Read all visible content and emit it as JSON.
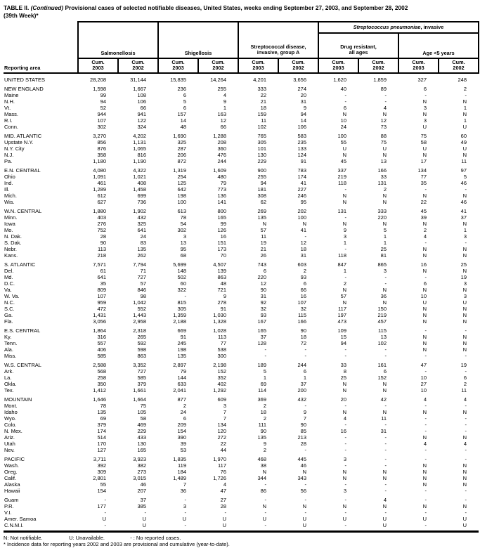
{
  "title": {
    "bold": "TABLE II.",
    "continued": "(Continued)",
    "rest": "Provisional cases of selected notifiable diseases, United States, weeks ending September 27, 2003, and September 28, 2002",
    "line2": "(39th Week)*"
  },
  "header": {
    "reporting_area": "Reporting area",
    "groups": {
      "salmonellosis": "Salmonellosis",
      "shigellosis": "Shigellosis",
      "strep_a_line1": "Streptococcal disease,",
      "strep_a_line2": "invasive, group A",
      "spn_italic": "Streptococcus pneumoniae",
      "spn_rest": ", invasive",
      "drug_line1": "Drug resistant,",
      "drug_line2": "all ages",
      "age": "Age <5 years"
    },
    "subheaders": [
      {
        "label": "Cum.",
        "year": "2003"
      },
      {
        "label": "Cum.",
        "year": "2002"
      },
      {
        "label": "Cum.",
        "year": "2003"
      },
      {
        "label": "Cum.",
        "year": "2002"
      },
      {
        "label": "Cum.",
        "year": "2003"
      },
      {
        "label": "Cum.",
        "year": "2002"
      },
      {
        "label": "Cum.",
        "year": "2003"
      },
      {
        "label": "Cum.",
        "year": "2002"
      },
      {
        "label": "Cum.",
        "year": "2003"
      },
      {
        "label": "Cum.",
        "year": "2002"
      }
    ]
  },
  "rows": [
    {
      "area": "UNITED STATES",
      "type": "region",
      "gap": true,
      "values": [
        "28,208",
        "31,144",
        "15,835",
        "14,264",
        "4,201",
        "3,656",
        "1,620",
        "1,859",
        "327",
        "248"
      ]
    },
    {
      "area": "NEW ENGLAND",
      "type": "region",
      "gap": true,
      "values": [
        "1,598",
        "1,667",
        "236",
        "255",
        "333",
        "274",
        "40",
        "89",
        "6",
        "2"
      ]
    },
    {
      "area": "Maine",
      "type": "state",
      "gap": false,
      "values": [
        "99",
        "108",
        "6",
        "4",
        "22",
        "20",
        "-",
        "-",
        "-",
        "-"
      ]
    },
    {
      "area": "N.H.",
      "type": "state",
      "gap": false,
      "values": [
        "94",
        "106",
        "5",
        "9",
        "21",
        "31",
        "-",
        "-",
        "N",
        "N"
      ]
    },
    {
      "area": "Vt.",
      "type": "state",
      "gap": false,
      "values": [
        "52",
        "66",
        "6",
        "1",
        "18",
        "9",
        "6",
        "4",
        "3",
        "1"
      ]
    },
    {
      "area": "Mass.",
      "type": "state",
      "gap": false,
      "values": [
        "944",
        "941",
        "157",
        "163",
        "159",
        "94",
        "N",
        "N",
        "N",
        "N"
      ]
    },
    {
      "area": "R.I.",
      "type": "state",
      "gap": false,
      "values": [
        "107",
        "122",
        "14",
        "12",
        "11",
        "14",
        "10",
        "12",
        "3",
        "1"
      ]
    },
    {
      "area": "Conn.",
      "type": "state",
      "gap": false,
      "values": [
        "302",
        "324",
        "48",
        "66",
        "102",
        "106",
        "24",
        "73",
        "U",
        "U"
      ]
    },
    {
      "area": "MID. ATLANTIC",
      "type": "region",
      "gap": true,
      "values": [
        "3,270",
        "4,202",
        "1,690",
        "1,288",
        "765",
        "583",
        "100",
        "88",
        "75",
        "60"
      ]
    },
    {
      "area": "Upstate N.Y.",
      "type": "state",
      "gap": false,
      "values": [
        "856",
        "1,131",
        "325",
        "208",
        "305",
        "235",
        "55",
        "75",
        "58",
        "49"
      ]
    },
    {
      "area": "N.Y. City",
      "type": "state",
      "gap": false,
      "values": [
        "876",
        "1,065",
        "287",
        "360",
        "101",
        "133",
        "U",
        "U",
        "U",
        "U"
      ]
    },
    {
      "area": "N.J.",
      "type": "state",
      "gap": false,
      "values": [
        "358",
        "816",
        "206",
        "476",
        "130",
        "124",
        "N",
        "N",
        "N",
        "N"
      ]
    },
    {
      "area": "Pa.",
      "type": "state",
      "gap": false,
      "values": [
        "1,180",
        "1,190",
        "872",
        "244",
        "229",
        "91",
        "45",
        "13",
        "17",
        "11"
      ]
    },
    {
      "area": "E.N. CENTRAL",
      "type": "region",
      "gap": true,
      "values": [
        "4,080",
        "4,322",
        "1,319",
        "1,609",
        "900",
        "783",
        "337",
        "166",
        "134",
        "97"
      ]
    },
    {
      "area": "Ohio",
      "type": "state",
      "gap": false,
      "values": [
        "1,091",
        "1,021",
        "254",
        "480",
        "255",
        "174",
        "219",
        "33",
        "77",
        "5"
      ]
    },
    {
      "area": "Ind.",
      "type": "state",
      "gap": false,
      "values": [
        "461",
        "408",
        "125",
        "79",
        "94",
        "41",
        "118",
        "131",
        "35",
        "46"
      ]
    },
    {
      "area": "Ill.",
      "type": "state",
      "gap": false,
      "values": [
        "1,289",
        "1,458",
        "642",
        "773",
        "181",
        "227",
        "-",
        "2",
        "-",
        "-"
      ]
    },
    {
      "area": "Mich.",
      "type": "state",
      "gap": false,
      "values": [
        "612",
        "699",
        "198",
        "136",
        "308",
        "246",
        "N",
        "N",
        "N",
        "N"
      ]
    },
    {
      "area": "Wis.",
      "type": "state",
      "gap": false,
      "values": [
        "627",
        "736",
        "100",
        "141",
        "62",
        "95",
        "N",
        "N",
        "22",
        "46"
      ]
    },
    {
      "area": "W.N. CENTRAL",
      "type": "region",
      "gap": true,
      "values": [
        "1,880",
        "1,902",
        "613",
        "800",
        "269",
        "202",
        "131",
        "333",
        "45",
        "41"
      ]
    },
    {
      "area": "Minn.",
      "type": "state",
      "gap": false,
      "values": [
        "403",
        "432",
        "78",
        "165",
        "135",
        "100",
        "-",
        "220",
        "39",
        "37"
      ]
    },
    {
      "area": "Iowa",
      "type": "state",
      "gap": false,
      "values": [
        "276",
        "325",
        "54",
        "99",
        "N",
        "N",
        "N",
        "N",
        "N",
        "N"
      ]
    },
    {
      "area": "Mo.",
      "type": "state",
      "gap": false,
      "values": [
        "752",
        "641",
        "302",
        "126",
        "57",
        "41",
        "9",
        "5",
        "2",
        "1"
      ]
    },
    {
      "area": "N. Dak.",
      "type": "state",
      "gap": false,
      "values": [
        "28",
        "24",
        "3",
        "16",
        "11",
        "-",
        "3",
        "1",
        "4",
        "3"
      ]
    },
    {
      "area": "S. Dak.",
      "type": "state",
      "gap": false,
      "values": [
        "90",
        "83",
        "13",
        "151",
        "19",
        "12",
        "1",
        "1",
        "-",
        "-"
      ]
    },
    {
      "area": "Nebr.",
      "type": "state",
      "gap": false,
      "values": [
        "113",
        "135",
        "95",
        "173",
        "21",
        "18",
        "-",
        "25",
        "N",
        "N"
      ]
    },
    {
      "area": "Kans.",
      "type": "state",
      "gap": false,
      "values": [
        "218",
        "262",
        "68",
        "70",
        "26",
        "31",
        "118",
        "81",
        "N",
        "N"
      ]
    },
    {
      "area": "S. ATLANTIC",
      "type": "region",
      "gap": true,
      "values": [
        "7,571",
        "7,794",
        "5,699",
        "4,507",
        "743",
        "603",
        "847",
        "865",
        "16",
        "25"
      ]
    },
    {
      "area": "Del.",
      "type": "state",
      "gap": false,
      "values": [
        "61",
        "71",
        "148",
        "139",
        "6",
        "2",
        "1",
        "3",
        "N",
        "N"
      ]
    },
    {
      "area": "Md.",
      "type": "state",
      "gap": false,
      "values": [
        "641",
        "727",
        "502",
        "863",
        "220",
        "93",
        "-",
        "-",
        "-",
        "19"
      ]
    },
    {
      "area": "D.C.",
      "type": "state",
      "gap": false,
      "values": [
        "35",
        "57",
        "60",
        "48",
        "12",
        "6",
        "2",
        "-",
        "6",
        "3"
      ]
    },
    {
      "area": "Va.",
      "type": "state",
      "gap": false,
      "values": [
        "809",
        "846",
        "322",
        "721",
        "90",
        "66",
        "N",
        "N",
        "N",
        "N"
      ]
    },
    {
      "area": "W. Va.",
      "type": "state",
      "gap": false,
      "values": [
        "107",
        "98",
        "-",
        "9",
        "31",
        "16",
        "57",
        "36",
        "10",
        "3"
      ]
    },
    {
      "area": "N.C.",
      "type": "state",
      "gap": false,
      "values": [
        "959",
        "1,042",
        "815",
        "278",
        "92",
        "107",
        "N",
        "N",
        "U",
        "U"
      ]
    },
    {
      "area": "S.C.",
      "type": "state",
      "gap": false,
      "values": [
        "472",
        "552",
        "305",
        "91",
        "32",
        "32",
        "117",
        "150",
        "N",
        "N"
      ]
    },
    {
      "area": "Ga.",
      "type": "state",
      "gap": false,
      "values": [
        "1,431",
        "1,443",
        "1,359",
        "1,030",
        "93",
        "115",
        "197",
        "219",
        "N",
        "N"
      ]
    },
    {
      "area": "Fla.",
      "type": "state",
      "gap": false,
      "values": [
        "3,056",
        "2,958",
        "2,188",
        "1,328",
        "167",
        "166",
        "473",
        "457",
        "N",
        "N"
      ]
    },
    {
      "area": "E.S. CENTRAL",
      "type": "region",
      "gap": true,
      "values": [
        "1,864",
        "2,318",
        "669",
        "1,028",
        "165",
        "90",
        "109",
        "115",
        "-",
        "-"
      ]
    },
    {
      "area": "Ky.",
      "type": "state",
      "gap": false,
      "values": [
        "316",
        "265",
        "91",
        "113",
        "37",
        "18",
        "15",
        "13",
        "N",
        "N"
      ]
    },
    {
      "area": "Tenn.",
      "type": "state",
      "gap": false,
      "values": [
        "557",
        "592",
        "245",
        "77",
        "128",
        "72",
        "94",
        "102",
        "N",
        "N"
      ]
    },
    {
      "area": "Ala.",
      "type": "state",
      "gap": false,
      "values": [
        "406",
        "598",
        "198",
        "538",
        "-",
        "-",
        "-",
        "-",
        "N",
        "N"
      ]
    },
    {
      "area": "Miss.",
      "type": "state",
      "gap": false,
      "values": [
        "585",
        "863",
        "135",
        "300",
        "-",
        "-",
        "-",
        "-",
        "-",
        "-"
      ]
    },
    {
      "area": "W.S. CENTRAL",
      "type": "region",
      "gap": true,
      "values": [
        "2,588",
        "3,352",
        "2,897",
        "2,198",
        "189",
        "244",
        "33",
        "161",
        "47",
        "19"
      ]
    },
    {
      "area": "Ark.",
      "type": "state",
      "gap": false,
      "values": [
        "568",
        "727",
        "79",
        "152",
        "5",
        "6",
        "8",
        "6",
        "-",
        "-"
      ]
    },
    {
      "area": "La.",
      "type": "state",
      "gap": false,
      "values": [
        "258",
        "585",
        "144",
        "352",
        "1",
        "1",
        "25",
        "152",
        "10",
        "6"
      ]
    },
    {
      "area": "Okla.",
      "type": "state",
      "gap": false,
      "values": [
        "350",
        "379",
        "633",
        "402",
        "69",
        "37",
        "N",
        "N",
        "27",
        "2"
      ]
    },
    {
      "area": "Tex.",
      "type": "state",
      "gap": false,
      "values": [
        "1,412",
        "1,661",
        "2,041",
        "1,292",
        "114",
        "200",
        "N",
        "N",
        "10",
        "11"
      ]
    },
    {
      "area": "MOUNTAIN",
      "type": "region",
      "gap": true,
      "values": [
        "1,646",
        "1,664",
        "877",
        "609",
        "369",
        "432",
        "20",
        "42",
        "4",
        "4"
      ]
    },
    {
      "area": "Mont.",
      "type": "state",
      "gap": false,
      "values": [
        "78",
        "75",
        "2",
        "3",
        "2",
        "-",
        "-",
        "-",
        "-",
        "-"
      ]
    },
    {
      "area": "Idaho",
      "type": "state",
      "gap": false,
      "values": [
        "135",
        "105",
        "24",
        "7",
        "18",
        "9",
        "N",
        "N",
        "N",
        "N"
      ]
    },
    {
      "area": "Wyo.",
      "type": "state",
      "gap": false,
      "values": [
        "69",
        "58",
        "6",
        "7",
        "2",
        "7",
        "4",
        "11",
        "-",
        "-"
      ]
    },
    {
      "area": "Colo.",
      "type": "state",
      "gap": false,
      "values": [
        "379",
        "469",
        "209",
        "134",
        "111",
        "90",
        "-",
        "-",
        "-",
        "-"
      ]
    },
    {
      "area": "N. Mex.",
      "type": "state",
      "gap": false,
      "values": [
        "174",
        "229",
        "154",
        "120",
        "90",
        "85",
        "16",
        "31",
        "-",
        "-"
      ]
    },
    {
      "area": "Ariz.",
      "type": "state",
      "gap": false,
      "values": [
        "514",
        "433",
        "390",
        "272",
        "135",
        "213",
        "-",
        "-",
        "N",
        "N"
      ]
    },
    {
      "area": "Utah",
      "type": "state",
      "gap": false,
      "values": [
        "170",
        "130",
        "39",
        "22",
        "9",
        "28",
        "-",
        "-",
        "4",
        "4"
      ]
    },
    {
      "area": "Nev.",
      "type": "state",
      "gap": false,
      "values": [
        "127",
        "165",
        "53",
        "44",
        "2",
        "-",
        "-",
        "-",
        "-",
        "-"
      ]
    },
    {
      "area": "PACIFIC",
      "type": "region",
      "gap": true,
      "values": [
        "3,711",
        "3,923",
        "1,835",
        "1,970",
        "468",
        "445",
        "3",
        "-",
        "-",
        "-"
      ]
    },
    {
      "area": "Wash.",
      "type": "state",
      "gap": false,
      "values": [
        "392",
        "382",
        "119",
        "117",
        "38",
        "46",
        "-",
        "-",
        "N",
        "N"
      ]
    },
    {
      "area": "Oreg.",
      "type": "state",
      "gap": false,
      "values": [
        "309",
        "273",
        "184",
        "76",
        "N",
        "N",
        "N",
        "N",
        "N",
        "N"
      ]
    },
    {
      "area": "Calif.",
      "type": "state",
      "gap": false,
      "values": [
        "2,801",
        "3,015",
        "1,489",
        "1,726",
        "344",
        "343",
        "N",
        "N",
        "N",
        "N"
      ]
    },
    {
      "area": "Alaska",
      "type": "state",
      "gap": false,
      "values": [
        "55",
        "46",
        "7",
        "4",
        "-",
        "-",
        "-",
        "-",
        "N",
        "N"
      ]
    },
    {
      "area": "Hawaii",
      "type": "state",
      "gap": false,
      "values": [
        "154",
        "207",
        "36",
        "47",
        "86",
        "56",
        "3",
        "-",
        "-",
        "-"
      ]
    },
    {
      "area": "Guam",
      "type": "territory",
      "gap": true,
      "values": [
        "-",
        "37",
        "-",
        "27",
        "-",
        "-",
        "-",
        "4",
        "-",
        "-"
      ]
    },
    {
      "area": "P.R.",
      "type": "territory",
      "gap": false,
      "values": [
        "177",
        "385",
        "3",
        "28",
        "N",
        "N",
        "N",
        "N",
        "N",
        "N"
      ]
    },
    {
      "area": "V.I.",
      "type": "territory",
      "gap": false,
      "values": [
        "-",
        "-",
        "-",
        "-",
        "-",
        "-",
        "-",
        "-",
        "-",
        "-"
      ]
    },
    {
      "area": "Amer. Samoa",
      "type": "territory",
      "gap": false,
      "values": [
        "U",
        "U",
        "U",
        "U",
        "U",
        "U",
        "U",
        "U",
        "U",
        "U"
      ]
    },
    {
      "area": "C.N.M.I.",
      "type": "territory",
      "gap": false,
      "values": [
        "-",
        "U",
        "-",
        "U",
        "-",
        "U",
        "-",
        "U",
        "-",
        "U"
      ]
    }
  ],
  "footnotes": {
    "n": "N: Not notifiable.",
    "u": "U: Unavailable.",
    "dash": "- : No reported cases.",
    "star": "* Incidence data for reporting years 2002 and 2003 are provisional and cumulative (year-to-date)."
  }
}
